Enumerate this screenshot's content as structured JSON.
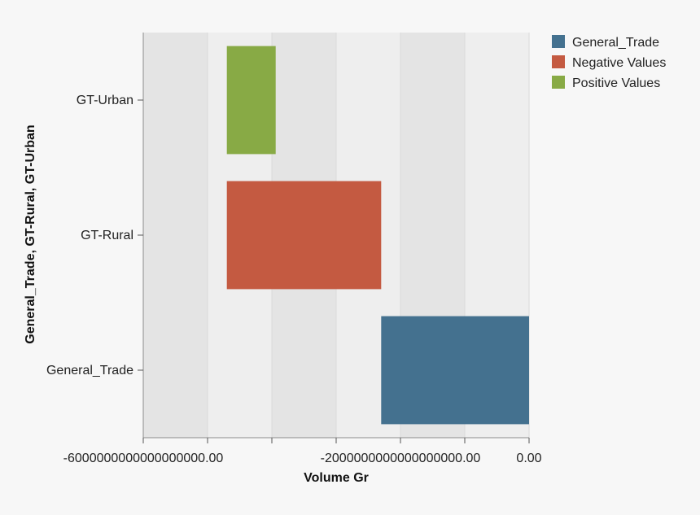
{
  "chart_data": {
    "type": "bar",
    "orientation": "horizontal",
    "subtype": "waterfall",
    "categories": [
      "GT-Urban",
      "GT-Rural",
      "General_Trade"
    ],
    "bars": [
      {
        "category": "GT-Urban",
        "series": "Positive Values",
        "start": -4700000000000000000,
        "end": -4700000000000000000
      },
      {
        "category": "GT-Rural",
        "series": "Negative Values",
        "start": -4700000000000000000,
        "end": -2300000000000000000
      },
      {
        "category": "General_Trade",
        "series": "General_Trade",
        "start": -2300000000000000000,
        "end": 0
      }
    ],
    "x_ticks": [
      {
        "value": -6000000000000000000,
        "label": "-6000000000000000000.00"
      },
      {
        "value": -5000000000000000000,
        "label": ""
      },
      {
        "value": -4000000000000000000,
        "label": ""
      },
      {
        "value": -3000000000000000000,
        "label": ""
      },
      {
        "value": -2000000000000000000,
        "label": "-2000000000000000000.00"
      },
      {
        "value": -1000000000000000000,
        "label": ""
      },
      {
        "value": 0,
        "label": "0.00"
      }
    ],
    "xlim": [
      -6000000000000000000,
      0
    ],
    "xlabel": "Volume Gr",
    "ylabel": "General_Trade, GT-Rural, GT-Urban",
    "legend": {
      "position": "top-right",
      "entries": [
        {
          "name": "General_Trade",
          "color": "#44718f"
        },
        {
          "name": "Negative Values",
          "color": "#c45a41"
        },
        {
          "name": "Positive Values",
          "color": "#88aa45"
        }
      ]
    },
    "grid": true
  }
}
